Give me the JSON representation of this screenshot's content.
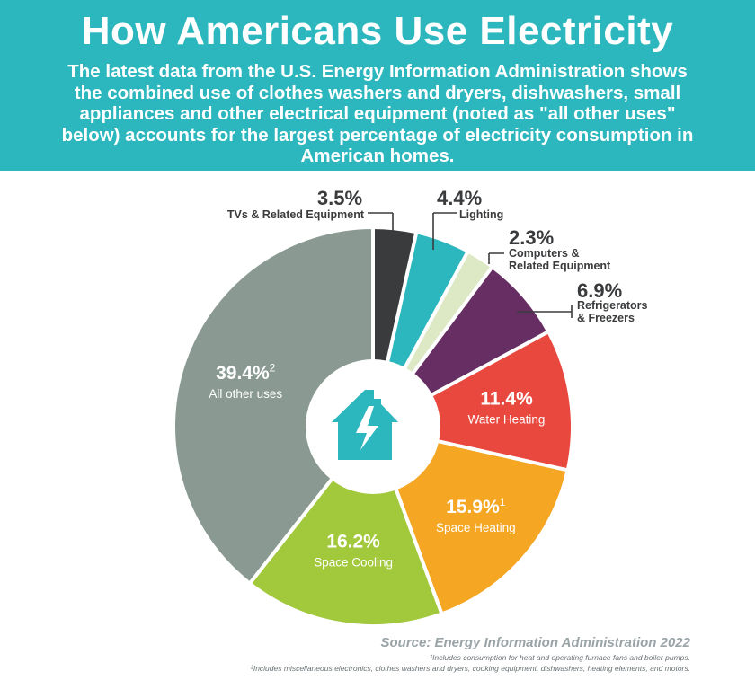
{
  "header": {
    "title": "How Americans Use Electricity",
    "subtitle": "The latest data from the U.S. Energy Information Administration shows the combined use of clothes washers and dryers, dishwashers, small appliances and other electrical equipment (noted as \"all other uses\" below) accounts for the largest percentage of electricity consumption in American homes."
  },
  "chart_data": {
    "type": "pie",
    "style": "donut",
    "series": [
      {
        "label": "TVs & Related Equipment",
        "value": 3.5,
        "display": "3.5%",
        "color": "#3a3b3d"
      },
      {
        "label": "Lighting",
        "value": 4.4,
        "display": "4.4%",
        "color": "#2bb7bd"
      },
      {
        "label": "Computers & Related Equipment",
        "value": 2.3,
        "display": "2.3%",
        "color": "#dde8c4"
      },
      {
        "label": "Refrigerators & Freezers",
        "value": 6.9,
        "display": "6.9%",
        "color": "#662e62"
      },
      {
        "label": "Water Heating",
        "value": 11.4,
        "display": "11.4%",
        "color": "#e9483f"
      },
      {
        "label": "Space Heating",
        "value": 15.9,
        "display": "15.9%",
        "footnote": "1",
        "color": "#f5a623"
      },
      {
        "label": "Space Cooling",
        "value": 16.2,
        "display": "16.2%",
        "color": "#a2c83b"
      },
      {
        "label": "All other uses",
        "value": 39.4,
        "display": "39.4%",
        "footnote": "2",
        "color": "#8a9a93"
      }
    ],
    "center_icon": "house-lightning-icon"
  },
  "source": "Source: Energy Information Administration 2022",
  "footnotes": [
    "¹Includes consumption for heat and operating furnace fans and boiler pumps.",
    "²Includes miscellaneous electronics, clothes washers and dryers, cooking equipment, dishwashers, heating elements, and motors."
  ]
}
